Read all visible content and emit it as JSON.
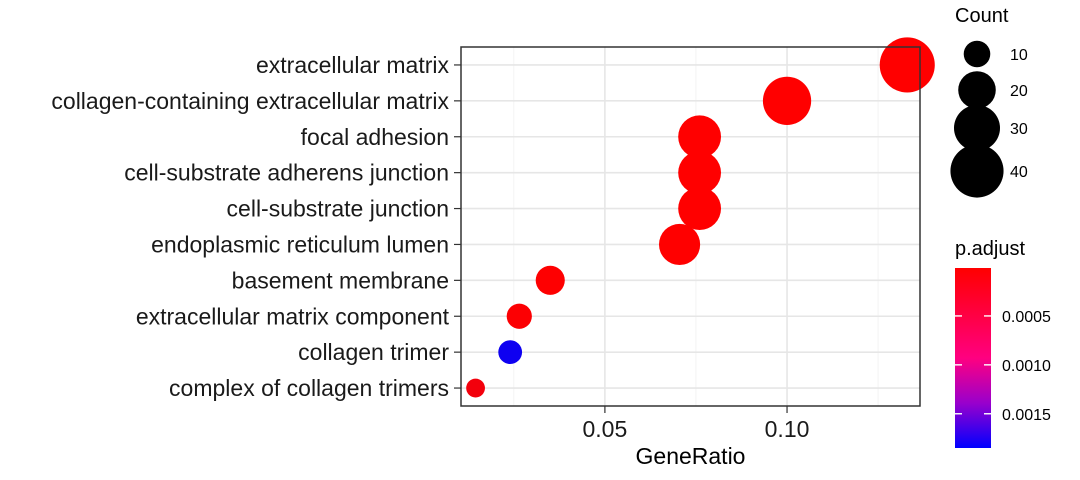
{
  "chart_data": {
    "type": "scatter",
    "xlabel": "GeneRatio",
    "ylabel": "",
    "xlim": [
      0.0105,
      0.1365
    ],
    "x_ticks": [
      {
        "value": 0.05,
        "label": "0.05"
      },
      {
        "value": 0.1,
        "label": "0.10"
      }
    ],
    "grid": true,
    "terms": [
      {
        "label": "extracellular matrix",
        "gene_ratio": 0.133,
        "count": 43,
        "p_adjust": 1e-05
      },
      {
        "label": "collagen-containing extracellular matrix",
        "gene_ratio": 0.1,
        "count": 33,
        "p_adjust": 1e-05
      },
      {
        "label": "focal adhesion",
        "gene_ratio": 0.076,
        "count": 26,
        "p_adjust": 1e-05
      },
      {
        "label": "cell-substrate adherens junction",
        "gene_ratio": 0.076,
        "count": 26,
        "p_adjust": 1e-05
      },
      {
        "label": "cell-substrate junction",
        "gene_ratio": 0.076,
        "count": 26,
        "p_adjust": 1e-05
      },
      {
        "label": "endoplasmic reticulum lumen",
        "gene_ratio": 0.0705,
        "count": 24,
        "p_adjust": 1e-05
      },
      {
        "label": "basement membrane",
        "gene_ratio": 0.035,
        "count": 12,
        "p_adjust": 2e-05
      },
      {
        "label": "extracellular matrix component",
        "gene_ratio": 0.0265,
        "count": 9,
        "p_adjust": 3e-05
      },
      {
        "label": "collagen trimer",
        "gene_ratio": 0.024,
        "count": 8,
        "p_adjust": 0.00175
      },
      {
        "label": "complex of collagen trimers",
        "gene_ratio": 0.0145,
        "count": 5,
        "p_adjust": 0.0001
      }
    ],
    "size_legend": {
      "title": "Count",
      "items": [
        {
          "count": 10,
          "label": "10"
        },
        {
          "count": 20,
          "label": "20"
        },
        {
          "count": 30,
          "label": "30"
        },
        {
          "count": 40,
          "label": "40"
        }
      ]
    },
    "color_legend": {
      "title": "p.adjust",
      "range": [
        1e-05,
        0.00185
      ],
      "low_color": "#ff0000",
      "high_color": "#0000ff",
      "ticks": [
        {
          "value": 0.0005,
          "label": "0.0005"
        },
        {
          "value": 0.001,
          "label": "0.0010"
        },
        {
          "value": 0.0015,
          "label": "0.0015"
        }
      ]
    }
  }
}
